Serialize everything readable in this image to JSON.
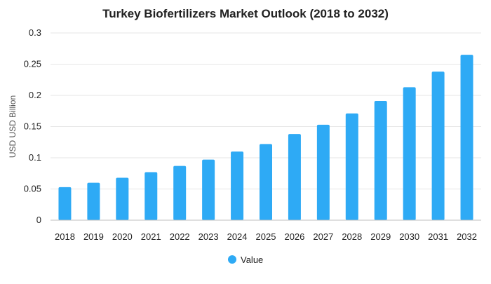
{
  "chart_data": {
    "type": "bar",
    "title": "Turkey Biofertilizers Market Outlook (2018 to 2032)",
    "xlabel": "",
    "ylabel": "USD USD Billion",
    "categories": [
      "2018",
      "2019",
      "2020",
      "2021",
      "2022",
      "2023",
      "2024",
      "2025",
      "2026",
      "2027",
      "2028",
      "2029",
      "2030",
      "2031",
      "2032"
    ],
    "series": [
      {
        "name": "Value",
        "color": "#2eaaf5",
        "values": [
          0.053,
          0.06,
          0.068,
          0.077,
          0.087,
          0.097,
          0.11,
          0.122,
          0.138,
          0.153,
          0.171,
          0.191,
          0.213,
          0.238,
          0.265
        ]
      }
    ],
    "ylim": [
      0,
      0.3
    ],
    "yticks": [
      "0",
      "0.05",
      "0.1",
      "0.15",
      "0.2",
      "0.25",
      "0.3"
    ],
    "grid": true,
    "legend_position": "bottom-center"
  }
}
